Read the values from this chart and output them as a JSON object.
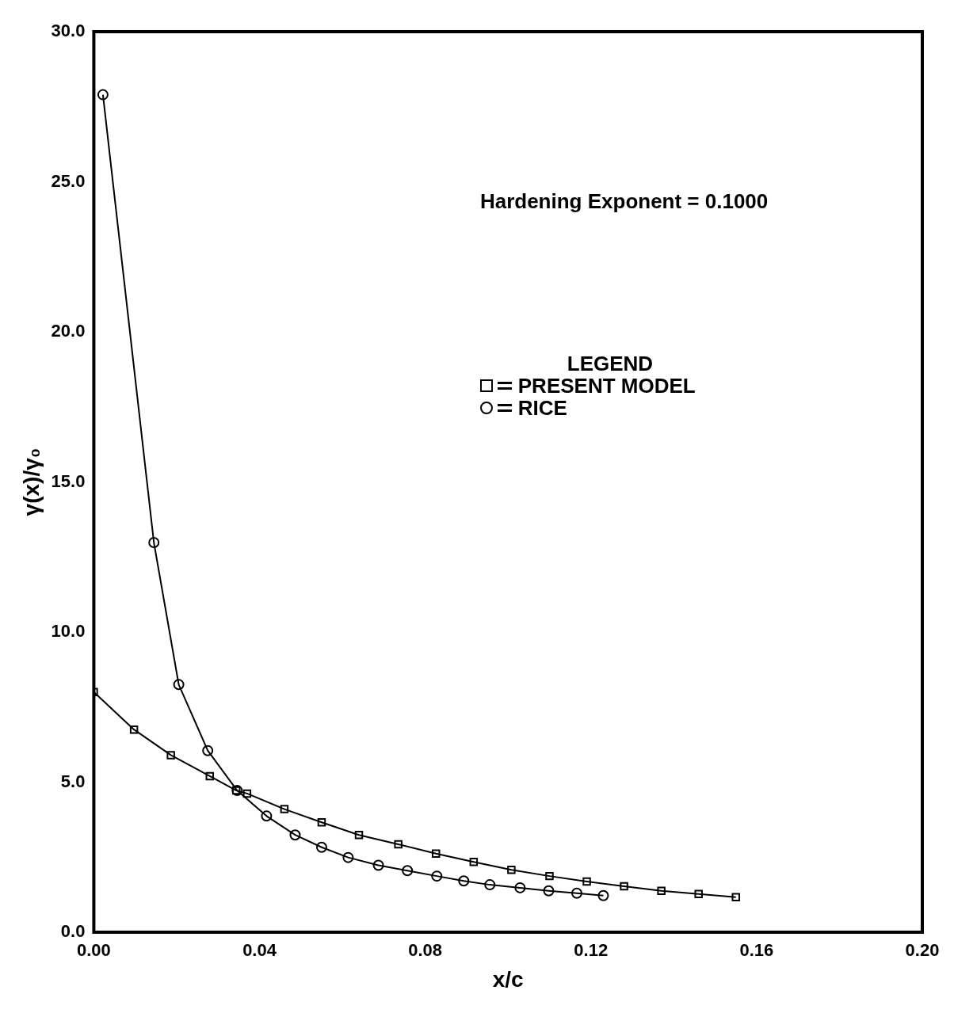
{
  "chart_data": {
    "type": "line",
    "xlabel": "x/c",
    "ylabel": "γ(x)/γ₀",
    "legend_title": "LEGEND",
    "legend": "top",
    "annotations": [
      "Hardening Exponent = 0.1000"
    ],
    "xlim": [
      0,
      0.2
    ],
    "xticks": [
      {
        "value": 0,
        "label": "0.00"
      },
      {
        "value": 0.04,
        "label": "0.04"
      },
      {
        "value": 0.08,
        "label": "0.08"
      },
      {
        "value": 0.12,
        "label": "0.12"
      },
      {
        "value": 0.16,
        "label": "0.16"
      },
      {
        "value": 0.2,
        "label": "0.20"
      }
    ],
    "ylim": [
      0,
      30
    ],
    "yticks": [
      {
        "value": 0,
        "label": "0.0"
      },
      {
        "value": 5,
        "label": "5.0"
      },
      {
        "value": 10,
        "label": "10.0"
      },
      {
        "value": 15,
        "label": "15.0"
      },
      {
        "value": 20,
        "label": "20.0"
      },
      {
        "value": 25,
        "label": "25.0"
      },
      {
        "value": 30,
        "label": "30.0"
      }
    ],
    "grid": false,
    "line_style": "solid",
    "series": [
      {
        "name": "PRESENT MODEL",
        "color": "#000000",
        "marker": "square",
        "x": [
          0,
          0.0097,
          0.0186,
          0.028,
          0.0344,
          0.037,
          0.046,
          0.055,
          0.064,
          0.0735,
          0.0826,
          0.0917,
          0.1008,
          0.11,
          0.119,
          0.128,
          0.137,
          0.146,
          0.155
        ],
        "values": [
          8.0,
          6.75,
          5.9,
          5.2,
          4.72,
          4.62,
          4.1,
          3.66,
          3.24,
          2.93,
          2.62,
          2.34,
          2.08,
          1.87,
          1.69,
          1.53,
          1.38,
          1.27,
          1.17
        ]
      },
      {
        "name": "RICE",
        "color": "#000000",
        "marker": "circle",
        "x": [
          0.0022,
          0.0145,
          0.0205,
          0.0275,
          0.0346,
          0.0417,
          0.0486,
          0.055,
          0.0614,
          0.0687,
          0.0757,
          0.0828,
          0.0893,
          0.0956,
          0.1029,
          0.1098,
          0.1166,
          0.123
        ],
        "values": [
          27.9,
          12.98,
          8.25,
          6.05,
          4.72,
          3.87,
          3.24,
          2.83,
          2.49,
          2.23,
          2.05,
          1.87,
          1.71,
          1.58,
          1.48,
          1.38,
          1.3,
          1.22
        ]
      }
    ]
  }
}
